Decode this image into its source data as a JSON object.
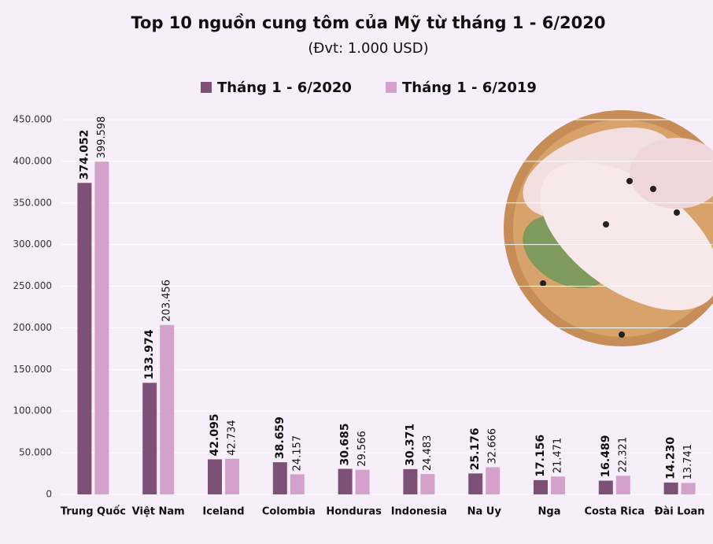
{
  "chart_data": {
    "type": "bar",
    "title": "Top 10 nguồn cung tôm của Mỹ từ tháng 1 - 6/2020",
    "subtitle": "(Đvt: 1.000 USD)",
    "categories": [
      "Trung Quốc",
      "Việt Nam",
      "Iceland",
      "Colombia",
      "Honduras",
      "Indonesia",
      "Na Uy",
      "Nga",
      "Costa Rica",
      "Đài Loan"
    ],
    "series": [
      {
        "name": "Tháng 1 - 6/2020",
        "color": "#7d5078",
        "values": [
          374052,
          133974,
          42095,
          38659,
          30685,
          30371,
          25176,
          17156,
          16489,
          14230
        ],
        "value_labels": [
          "374.052",
          "133.974",
          "42.095",
          "38.659",
          "30.685",
          "30.371",
          "25.176",
          "17.156",
          "16.489",
          "14.230"
        ]
      },
      {
        "name": "Tháng 1 - 6/2019",
        "color": "#d4a1cd",
        "values": [
          399598,
          203456,
          42734,
          24157,
          29566,
          24483,
          32666,
          21471,
          22321,
          13741
        ],
        "value_labels": [
          "399.598",
          "203.456",
          "42.734",
          "24.157",
          "29.566",
          "24.483",
          "32.666",
          "21.471",
          "22.321",
          "13.741"
        ]
      }
    ],
    "ylim": [
      0,
      450000
    ],
    "yticks": [
      0,
      {
        "value": 50000,
        "label": "50.000"
      },
      {
        "value": 100000,
        "label": "100.000"
      },
      {
        "value": 150000,
        "label": "150.000"
      },
      {
        "value": 200000,
        "label": "200.000"
      },
      {
        "value": 250000,
        "label": "250.000"
      },
      {
        "value": 300000,
        "label": "300.000"
      },
      {
        "value": 350000,
        "label": "350.000"
      },
      {
        "value": 400000,
        "label": "400.000"
      },
      {
        "value": 450000,
        "label": "450.000"
      }
    ],
    "grid": true
  }
}
